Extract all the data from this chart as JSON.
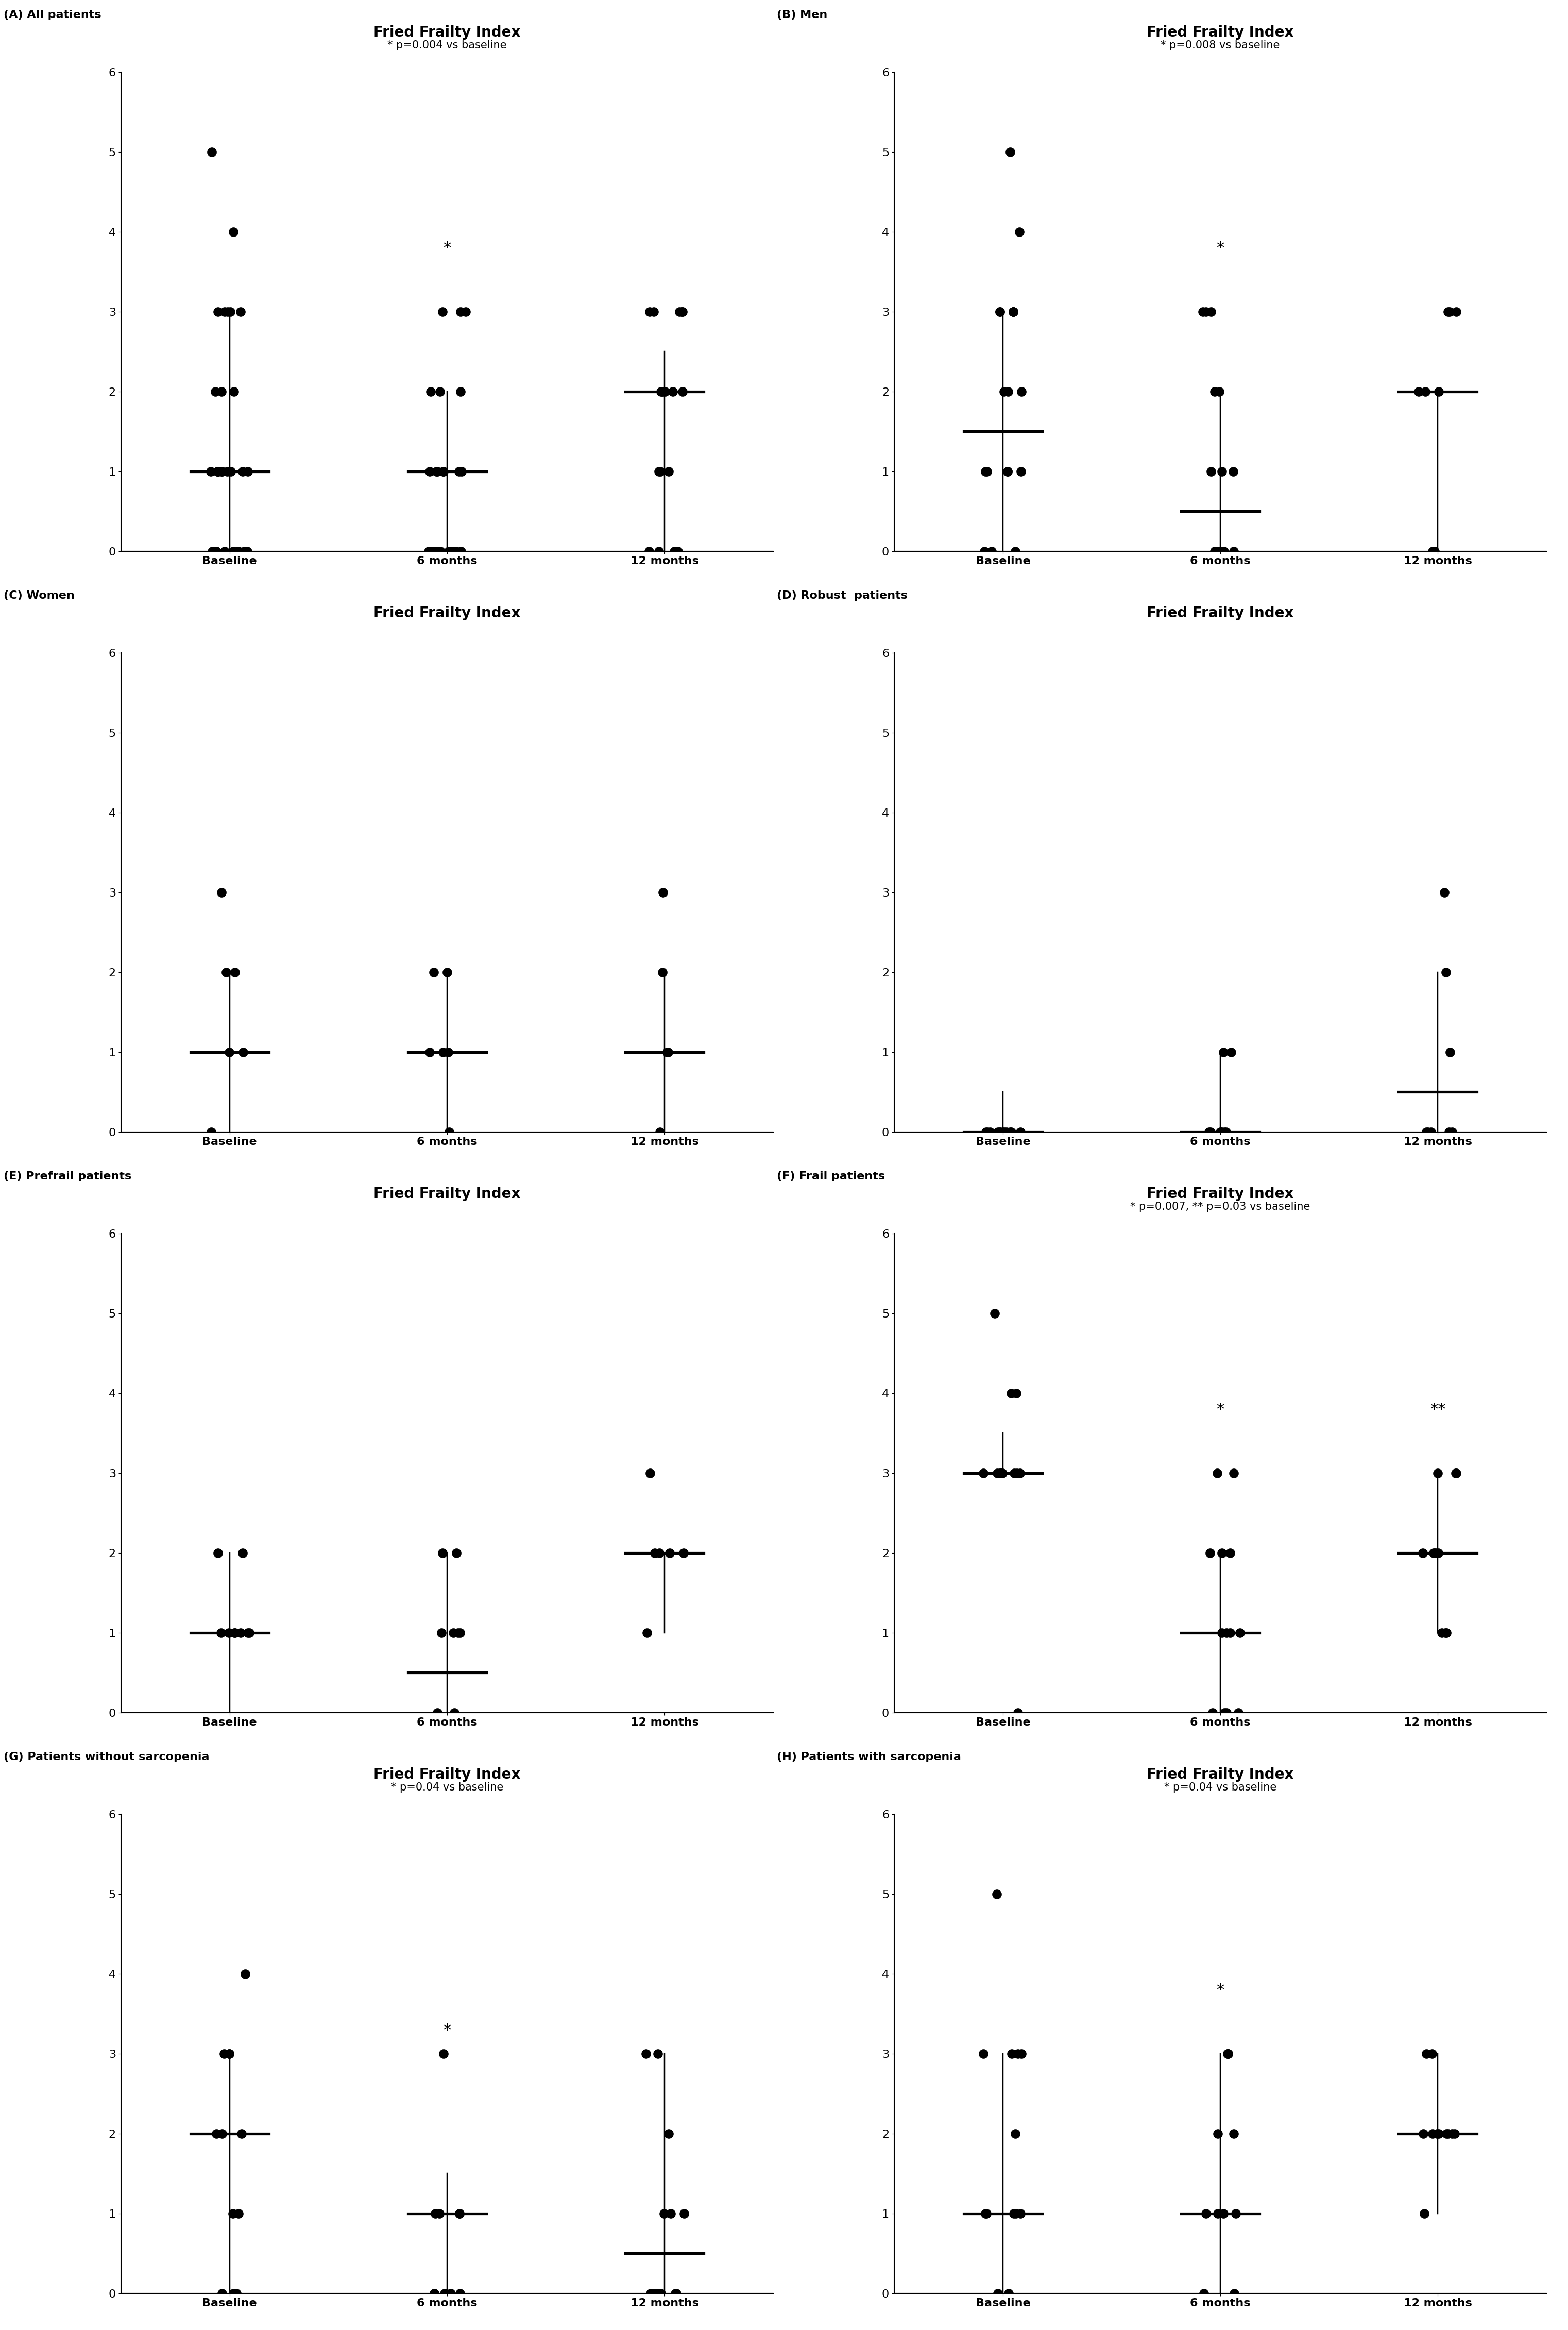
{
  "panels": [
    {
      "label": "(A) All patients",
      "title": "Fried Frailty Index",
      "subtitle": "* p=0.004 vs baseline",
      "subtitle_show": true,
      "ylim": [
        0,
        6
      ],
      "yticks": [
        0,
        1,
        2,
        3,
        4,
        5,
        6
      ],
      "xtick_labels": [
        "Baseline",
        "6 months",
        "12 months"
      ],
      "medians": [
        1,
        1,
        2
      ],
      "ci_low": [
        0,
        0,
        0
      ],
      "ci_high": [
        3,
        2,
        2.5
      ],
      "star_positions": [
        null,
        3.7,
        null
      ],
      "star2_positions": [
        null,
        null,
        null
      ],
      "data_points": [
        [
          0,
          0,
          0,
          0,
          0,
          0,
          0,
          0,
          0,
          0,
          1,
          1,
          1,
          1,
          1,
          1,
          1,
          1,
          1,
          1,
          2,
          2,
          2,
          3,
          3,
          3,
          3,
          3,
          4,
          5
        ],
        [
          0,
          0,
          0,
          0,
          0,
          0,
          0,
          0,
          0,
          0,
          1,
          1,
          1,
          1,
          1,
          1,
          1,
          2,
          2,
          2,
          3,
          3,
          3
        ],
        [
          0,
          0,
          0,
          0,
          1,
          1,
          1,
          2,
          2,
          2,
          2,
          2,
          2,
          3,
          3,
          3,
          3,
          3
        ]
      ]
    },
    {
      "label": "(B) Men",
      "title": "Fried Frailty Index",
      "subtitle": "* p=0.008 vs baseline",
      "subtitle_show": true,
      "ylim": [
        0,
        6
      ],
      "yticks": [
        0,
        1,
        2,
        3,
        4,
        5,
        6
      ],
      "xtick_labels": [
        "Baseline",
        "6 months",
        "12 months"
      ],
      "medians": [
        1.5,
        0.5,
        2
      ],
      "ci_low": [
        0,
        0,
        0
      ],
      "ci_high": [
        3,
        2,
        2
      ],
      "star_positions": [
        null,
        3.7,
        null
      ],
      "star2_positions": [
        null,
        null,
        null
      ],
      "data_points": [
        [
          0,
          0,
          0,
          1,
          1,
          1,
          1,
          1,
          2,
          2,
          2,
          3,
          3,
          3,
          3,
          3,
          4,
          5
        ],
        [
          0,
          0,
          0,
          0,
          0,
          1,
          1,
          1,
          2,
          2,
          3,
          3,
          3
        ],
        [
          0,
          0,
          2,
          2,
          2,
          3,
          3,
          3
        ]
      ]
    },
    {
      "label": "(C) Women",
      "title": "Fried Frailty Index",
      "subtitle": "",
      "subtitle_show": false,
      "ylim": [
        0,
        6
      ],
      "yticks": [
        0,
        1,
        2,
        3,
        4,
        5,
        6
      ],
      "xtick_labels": [
        "Baseline",
        "6 months",
        "12 months"
      ],
      "medians": [
        1,
        1,
        1
      ],
      "ci_low": [
        0,
        0,
        0
      ],
      "ci_high": [
        2,
        2,
        2
      ],
      "star_positions": [
        null,
        null,
        null
      ],
      "star2_positions": [
        null,
        null,
        null
      ],
      "data_points": [
        [
          0,
          1,
          1,
          2,
          2,
          3
        ],
        [
          0,
          1,
          1,
          1,
          2,
          2
        ],
        [
          0,
          1,
          1,
          2,
          3
        ]
      ]
    },
    {
      "label": "(D) Robust  patients",
      "title": "Fried Frailty Index",
      "subtitle": "",
      "subtitle_show": false,
      "ylim": [
        0,
        6
      ],
      "yticks": [
        0,
        1,
        2,
        3,
        4,
        5,
        6
      ],
      "xtick_labels": [
        "Baseline",
        "6 months",
        "12 months"
      ],
      "medians": [
        0,
        0,
        0.5
      ],
      "ci_low": [
        0,
        0,
        0
      ],
      "ci_high": [
        0.5,
        1,
        2
      ],
      "star_positions": [
        null,
        null,
        null
      ],
      "star2_positions": [
        null,
        null,
        null
      ],
      "data_points": [
        [
          0,
          0,
          0,
          0,
          0,
          0,
          0,
          0,
          0,
          0,
          0,
          0
        ],
        [
          0,
          0,
          0,
          0,
          0,
          0,
          0,
          1,
          1
        ],
        [
          0,
          0,
          0,
          0,
          0,
          1,
          2,
          3
        ]
      ]
    },
    {
      "label": "(E) Prefrail patients",
      "title": "Fried Frailty Index",
      "subtitle": "",
      "subtitle_show": false,
      "ylim": [
        0,
        6
      ],
      "yticks": [
        0,
        1,
        2,
        3,
        4,
        5,
        6
      ],
      "xtick_labels": [
        "Baseline",
        "6 months",
        "12 months"
      ],
      "medians": [
        1,
        0.5,
        2
      ],
      "ci_low": [
        0,
        0,
        1
      ],
      "ci_high": [
        2,
        2,
        2
      ],
      "star_positions": [
        null,
        null,
        null
      ],
      "star2_positions": [
        null,
        null,
        null
      ],
      "data_points": [
        [
          1,
          1,
          1,
          1,
          1,
          1,
          1,
          2,
          2
        ],
        [
          0,
          0,
          1,
          1,
          1,
          1,
          2,
          2
        ],
        [
          1,
          2,
          2,
          2,
          2,
          3
        ]
      ]
    },
    {
      "label": "(F) Frail patients",
      "title": "Fried Frailty Index",
      "subtitle": "* p=0.007, ** p=0.03 vs baseline",
      "subtitle_show": true,
      "ylim": [
        0,
        6
      ],
      "yticks": [
        0,
        1,
        2,
        3,
        4,
        5,
        6
      ],
      "xtick_labels": [
        "Baseline",
        "6 months",
        "12 months"
      ],
      "medians": [
        3,
        1,
        2
      ],
      "ci_low": [
        3,
        0,
        1
      ],
      "ci_high": [
        3.5,
        2,
        3
      ],
      "star_positions": [
        null,
        3.7,
        null
      ],
      "star2_positions": [
        null,
        null,
        3.7
      ],
      "data_points": [
        [
          0,
          3,
          3,
          3,
          3,
          3,
          3,
          3,
          3,
          3,
          4,
          4,
          5
        ],
        [
          0,
          0,
          0,
          0,
          1,
          1,
          1,
          1,
          2,
          2,
          2,
          3,
          3
        ],
        [
          1,
          1,
          1,
          2,
          2,
          2,
          2,
          2,
          3,
          3,
          3
        ]
      ]
    },
    {
      "label": "(G) Patients without sarcopenia",
      "title": "Fried Frailty Index",
      "subtitle": "* p=0.04 vs baseline",
      "subtitle_show": true,
      "ylim": [
        0,
        6
      ],
      "yticks": [
        0,
        1,
        2,
        3,
        4,
        5,
        6
      ],
      "xtick_labels": [
        "Baseline",
        "6 months",
        "12 months"
      ],
      "medians": [
        2,
        1,
        0.5
      ],
      "ci_low": [
        0,
        0,
        0
      ],
      "ci_high": [
        3,
        1.5,
        3
      ],
      "star_positions": [
        null,
        3.2,
        null
      ],
      "star2_positions": [
        null,
        null,
        null
      ],
      "data_points": [
        [
          0,
          0,
          0,
          1,
          1,
          2,
          2,
          2,
          3,
          3,
          3,
          4
        ],
        [
          0,
          0,
          0,
          0,
          0,
          0,
          1,
          1,
          1,
          1,
          3
        ],
        [
          0,
          0,
          0,
          0,
          0,
          0,
          0,
          1,
          1,
          1,
          2,
          3,
          3
        ]
      ]
    },
    {
      "label": "(H) Patients with sarcopenia",
      "title": "Fried Frailty Index",
      "subtitle": "* p=0.04 vs baseline",
      "subtitle_show": true,
      "ylim": [
        0,
        6
      ],
      "yticks": [
        0,
        1,
        2,
        3,
        4,
        5,
        6
      ],
      "xtick_labels": [
        "Baseline",
        "6 months",
        "12 months"
      ],
      "medians": [
        1,
        1,
        2
      ],
      "ci_low": [
        0,
        0,
        1
      ],
      "ci_high": [
        3,
        3,
        3
      ],
      "star_positions": [
        null,
        3.7,
        null
      ],
      "star2_positions": [
        null,
        null,
        null
      ],
      "data_points": [
        [
          0,
          0,
          1,
          1,
          1,
          1,
          1,
          2,
          3,
          3,
          3,
          3,
          5
        ],
        [
          0,
          0,
          1,
          1,
          1,
          1,
          2,
          2,
          3,
          3,
          3
        ],
        [
          1,
          2,
          2,
          2,
          2,
          2,
          2,
          2,
          2,
          3,
          3
        ]
      ]
    }
  ],
  "dot_color": "#000000",
  "dot_size": 30,
  "line_color": "#000000",
  "median_lw": 2.5,
  "ci_lw": 1.5,
  "label_fontsize": 16,
  "title_fontsize": 20,
  "subtitle_fontsize": 15,
  "tick_fontsize": 16,
  "axlabel_fontsize": 14,
  "background_color": "#ffffff",
  "jitter_seed": 42
}
